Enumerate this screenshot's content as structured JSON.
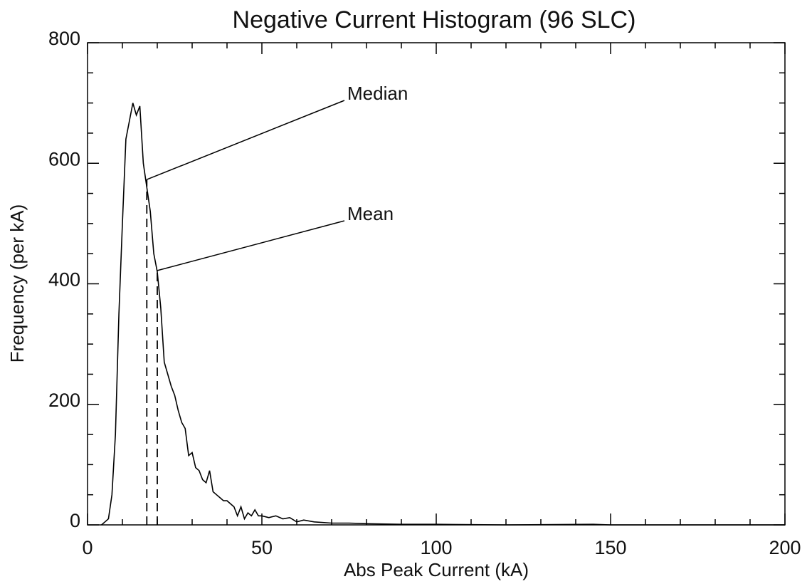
{
  "chart_data": {
    "type": "line",
    "title": "Negative Current Histogram (96 SLC)",
    "x_label": "Abs Peak Current (kA)",
    "y_label": "Frequency (per kA)",
    "color": "#000000",
    "x": [
      4,
      5,
      6,
      7,
      8,
      9,
      10,
      11,
      12,
      13,
      14,
      15,
      16,
      17,
      18,
      19,
      20,
      21,
      22,
      23,
      24,
      25,
      26,
      27,
      28,
      29,
      30,
      31,
      32,
      33,
      34,
      35,
      36,
      37,
      38,
      39,
      40,
      41,
      42,
      43,
      44,
      45,
      46,
      47,
      48,
      49,
      50,
      52,
      54,
      56,
      58,
      60,
      62,
      65,
      70,
      75,
      80,
      90,
      100,
      120,
      145,
      150,
      200
    ],
    "values": [
      0,
      5,
      10,
      50,
      150,
      350,
      500,
      640,
      670,
      700,
      680,
      695,
      600,
      560,
      520,
      450,
      420,
      360,
      270,
      250,
      230,
      215,
      190,
      170,
      160,
      115,
      120,
      95,
      90,
      75,
      70,
      90,
      55,
      50,
      45,
      40,
      40,
      35,
      30,
      15,
      30,
      10,
      20,
      15,
      25,
      15,
      15,
      12,
      15,
      10,
      12,
      5,
      8,
      5,
      3,
      3,
      2,
      1,
      1,
      0,
      1,
      0,
      0
    ],
    "annotations": [
      {
        "text": "Median",
        "x": 17,
        "y": 573
      },
      {
        "text": "Mean",
        "x": 20,
        "y": 422
      }
    ],
    "xlim": [
      0,
      200
    ],
    "ylim": [
      0,
      800
    ],
    "xticks": [
      0,
      50,
      100,
      150,
      200
    ],
    "yticks": [
      0,
      200,
      400,
      600,
      800
    ],
    "xminorticks": [
      10,
      20,
      30,
      40,
      60,
      70,
      80,
      90,
      110,
      120,
      130,
      140,
      160,
      170,
      180,
      190
    ],
    "yminorticks": [
      50,
      100,
      150,
      250,
      300,
      350,
      450,
      500,
      550,
      650,
      700,
      750
    ]
  }
}
